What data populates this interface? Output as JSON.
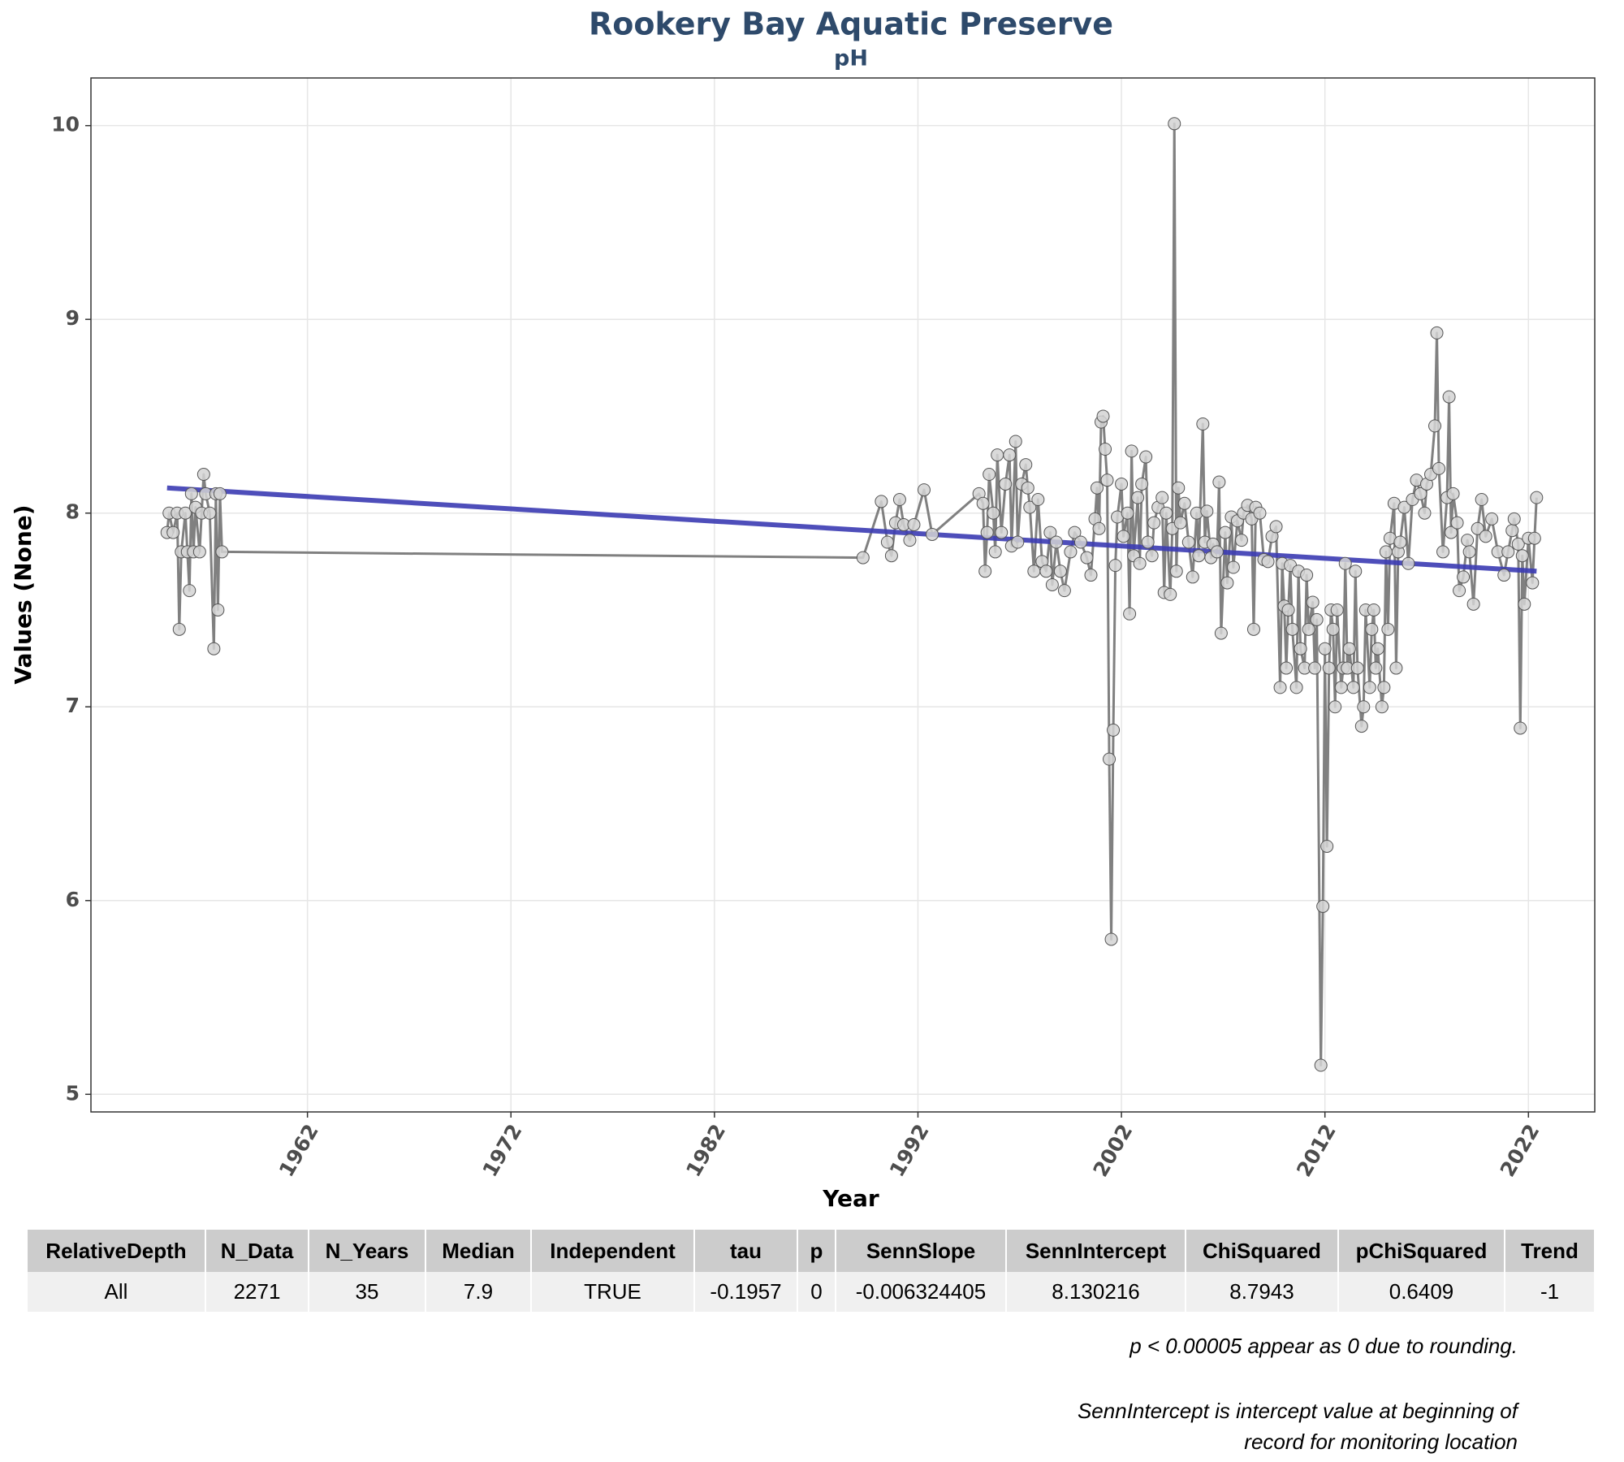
{
  "chart_data": {
    "type": "line",
    "title": "Rookery Bay Aquatic Preserve",
    "subtitle": "pH",
    "x_label": "Year",
    "y_label": "Values (None)",
    "xlim": [
      1951.36,
      2025.26
    ],
    "ylim": [
      4.909,
      10.246
    ],
    "xticks": [
      1962,
      1972,
      1982,
      1992,
      2002,
      2012,
      2022
    ],
    "yticks": [
      5,
      6,
      7,
      8,
      9,
      10
    ],
    "grid": true,
    "series": [
      {
        "color": "#808080",
        "x": [
          1955.1,
          1955.2,
          1955.4,
          1955.6,
          1955.7,
          1955.8,
          1956.0,
          1956.1,
          1956.2,
          1956.3,
          1956.4,
          1956.5,
          1956.7,
          1956.8,
          1956.9,
          1957.0,
          1957.2,
          1957.4,
          1957.5,
          1957.6,
          1957.7,
          1957.8,
          1989.3,
          1990.2,
          1990.5,
          1990.7,
          1990.9,
          1991.1,
          1991.3,
          1991.6,
          1991.8,
          1992.3,
          1992.7,
          1995.0,
          1995.2,
          1995.3,
          1995.4,
          1995.5,
          1995.7,
          1995.8,
          1995.9,
          1996.1,
          1996.3,
          1996.5,
          1996.6,
          1996.8,
          1996.9,
          1997.1,
          1997.3,
          1997.4,
          1997.5,
          1997.7,
          1997.9,
          1998.1,
          1998.3,
          1998.5,
          1998.6,
          1998.8,
          1999.0,
          1999.2,
          1999.5,
          1999.7,
          2000.0,
          2000.3,
          2000.5,
          2000.7,
          2000.8,
          2000.9,
          2001.0,
          2001.1,
          2001.2,
          2001.3,
          2001.4,
          2001.5,
          2001.6,
          2001.7,
          2001.8,
          2002.0,
          2002.1,
          2002.3,
          2002.4,
          2002.5,
          2002.6,
          2002.8,
          2002.9,
          2003.0,
          2003.2,
          2003.3,
          2003.5,
          2003.6,
          2003.8,
          2004.0,
          2004.1,
          2004.2,
          2004.4,
          2004.5,
          2004.6,
          2004.7,
          2004.8,
          2004.9,
          2005.1,
          2005.3,
          2005.5,
          2005.7,
          2005.8,
          2006.0,
          2006.1,
          2006.2,
          2006.4,
          2006.5,
          2006.7,
          2006.8,
          2006.9,
          2007.1,
          2007.2,
          2007.4,
          2007.5,
          2007.7,
          2007.9,
          2008.0,
          2008.2,
          2008.4,
          2008.5,
          2008.6,
          2008.8,
          2009.0,
          2009.2,
          2009.4,
          2009.6,
          2009.8,
          2009.9,
          2010.0,
          2010.1,
          2010.2,
          2010.3,
          2010.4,
          2010.6,
          2010.7,
          2010.8,
          2011.0,
          2011.1,
          2011.2,
          2011.4,
          2011.5,
          2011.6,
          2011.8,
          2011.9,
          2012.0,
          2012.1,
          2012.2,
          2012.3,
          2012.4,
          2012.5,
          2012.6,
          2012.8,
          2012.9,
          2013.0,
          2013.1,
          2013.2,
          2013.4,
          2013.5,
          2013.6,
          2013.8,
          2013.9,
          2014.0,
          2014.2,
          2014.3,
          2014.4,
          2014.5,
          2014.6,
          2014.8,
          2014.9,
          2015.0,
          2015.1,
          2015.2,
          2015.4,
          2015.5,
          2015.6,
          2015.7,
          2015.9,
          2016.1,
          2016.3,
          2016.5,
          2016.7,
          2016.9,
          2017.0,
          2017.2,
          2017.4,
          2017.5,
          2017.6,
          2017.8,
          2018.0,
          2018.1,
          2018.2,
          2018.3,
          2018.5,
          2018.6,
          2018.8,
          2019.0,
          2019.1,
          2019.3,
          2019.5,
          2019.7,
          2019.9,
          2020.2,
          2020.5,
          2020.8,
          2021.0,
          2021.2,
          2021.3,
          2021.5,
          2021.6,
          2021.7,
          2021.8,
          2022.0,
          2022.2,
          2022.3,
          2022.4
        ],
        "values": [
          7.9,
          8.0,
          7.9,
          8.0,
          7.4,
          7.8,
          8.0,
          7.8,
          7.6,
          8.1,
          7.8,
          8.03,
          7.8,
          8.0,
          8.2,
          8.1,
          8.0,
          7.3,
          8.1,
          7.5,
          8.1,
          7.8,
          7.77,
          8.06,
          7.85,
          7.78,
          7.95,
          8.07,
          7.94,
          7.86,
          7.94,
          8.12,
          7.89,
          8.1,
          8.05,
          7.7,
          7.9,
          8.2,
          8.0,
          7.8,
          8.3,
          7.9,
          8.15,
          8.3,
          7.83,
          8.37,
          7.85,
          8.15,
          8.25,
          8.13,
          8.03,
          7.7,
          8.07,
          7.75,
          7.7,
          7.9,
          7.63,
          7.85,
          7.7,
          7.6,
          7.8,
          7.9,
          7.85,
          7.77,
          7.68,
          7.97,
          8.13,
          7.92,
          8.47,
          8.5,
          8.33,
          8.17,
          6.73,
          5.8,
          6.88,
          7.73,
          7.98,
          8.15,
          7.88,
          8.0,
          7.48,
          8.32,
          7.78,
          8.08,
          7.74,
          8.15,
          8.29,
          7.85,
          7.78,
          7.95,
          8.03,
          8.08,
          7.59,
          8.0,
          7.58,
          7.92,
          10.01,
          7.7,
          8.13,
          7.95,
          8.05,
          7.85,
          7.67,
          8.0,
          7.78,
          8.46,
          7.85,
          8.01,
          7.77,
          7.84,
          7.8,
          8.16,
          7.38,
          7.9,
          7.64,
          7.98,
          7.72,
          7.96,
          7.86,
          8.0,
          8.04,
          7.97,
          7.4,
          8.03,
          8.0,
          7.76,
          7.75,
          7.88,
          7.93,
          7.1,
          7.74,
          7.52,
          7.2,
          7.5,
          7.73,
          7.4,
          7.1,
          7.7,
          7.3,
          7.2,
          7.68,
          7.4,
          7.54,
          7.2,
          7.45,
          5.15,
          5.97,
          7.3,
          6.28,
          7.2,
          7.5,
          7.4,
          7.0,
          7.5,
          7.1,
          7.2,
          7.74,
          7.2,
          7.3,
          7.1,
          7.7,
          7.2,
          6.9,
          7.0,
          7.5,
          7.1,
          7.4,
          7.5,
          7.2,
          7.3,
          7.0,
          7.1,
          7.8,
          7.4,
          7.87,
          8.05,
          7.2,
          7.8,
          7.85,
          8.03,
          7.74,
          8.07,
          8.17,
          8.1,
          8.0,
          8.15,
          8.2,
          8.45,
          8.93,
          8.23,
          7.8,
          8.08,
          8.6,
          7.9,
          8.1,
          7.95,
          7.6,
          7.67,
          7.86,
          7.8,
          7.53,
          7.92,
          8.07,
          7.88,
          7.97,
          7.8,
          7.68,
          7.8,
          7.91,
          7.97,
          7.84,
          6.89,
          7.78,
          7.53,
          7.87,
          7.64,
          7.87,
          8.08
        ]
      },
      {
        "color": "#3b3bb3",
        "x": [
          1955.1,
          2022.4
        ],
        "values": [
          8.13,
          7.7
        ]
      }
    ]
  },
  "table": {
    "header": [
      "RelativeDepth",
      "N_Data",
      "N_Years",
      "Median",
      "Independent",
      "tau",
      "p",
      "SennSlope",
      "SennIntercept",
      "ChiSquared",
      "pChiSquared",
      "Trend"
    ],
    "rows": [
      [
        "All",
        "2271",
        "35",
        "7.9",
        "TRUE",
        "-0.1957",
        "0",
        "-0.006324405",
        "8.130216",
        "8.7943",
        "0.6409",
        "-1"
      ]
    ]
  },
  "notes": [
    "p < 0.00005 appear as 0 due to rounding.",
    "SennIntercept is intercept value at beginning of",
    "record for monitoring location"
  ]
}
